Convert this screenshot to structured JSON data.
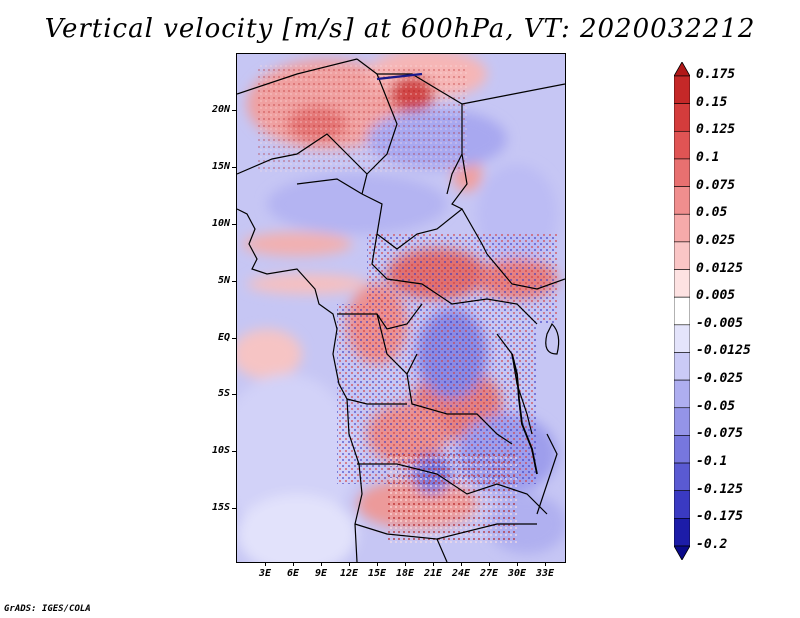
{
  "title": "Vertical velocity [m/s] at 600hPa, VT: 2020032212",
  "footer": "GrADS: IGES/COLA",
  "lat_axis": [
    "20N",
    "15N",
    "10N",
    "5N",
    "EQ",
    "5S",
    "10S",
    "15S"
  ],
  "lon_axis": [
    "3E",
    "6E",
    "9E",
    "12E",
    "15E",
    "18E",
    "21E",
    "24E",
    "27E",
    "30E",
    "33E"
  ],
  "colorbar": {
    "levels": [
      "0.175",
      "0.15",
      "0.125",
      "0.1",
      "0.075",
      "0.05",
      "0.025",
      "0.0125",
      "0.005",
      "-0.005",
      "-0.0125",
      "-0.025",
      "-0.05",
      "-0.075",
      "-0.1",
      "-0.125",
      "-0.175",
      "-0.2"
    ],
    "colors": [
      "#b01818",
      "#c42828",
      "#d43c3c",
      "#e05454",
      "#e87070",
      "#f08e8e",
      "#f6aaaa",
      "#fac6c6",
      "#fde2e2",
      "#ffffff",
      "#e4e4fb",
      "#cacaf6",
      "#aeaef0",
      "#9494e8",
      "#7777de",
      "#5a5ad2",
      "#3a3ac2",
      "#1c1ca8",
      "#0a0a8a"
    ]
  }
}
